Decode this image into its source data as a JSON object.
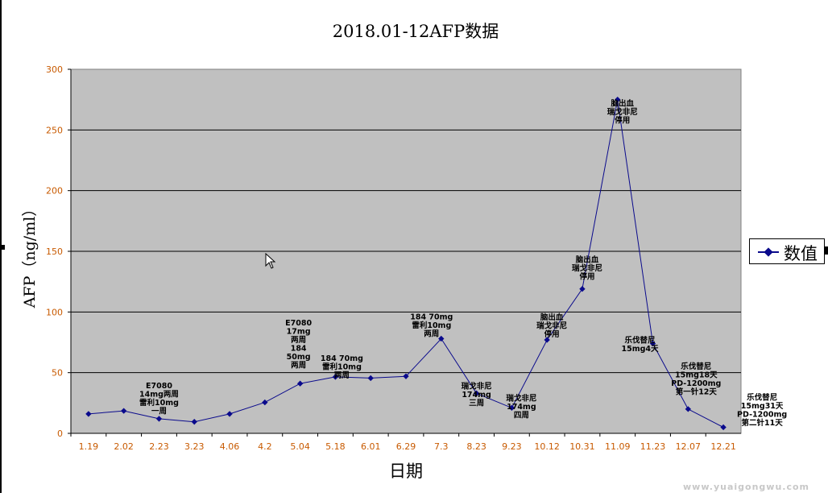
{
  "chart_data": {
    "type": "line",
    "title": "2018.01-12AFP数据",
    "xlabel": "日期",
    "ylabel": "AFP（ng/ml）",
    "ylim": [
      0,
      300
    ],
    "yticks": [
      0,
      50,
      100,
      150,
      200,
      250,
      300
    ],
    "grid": true,
    "legend_position": "right",
    "categories": [
      "1.19",
      "2.02",
      "2.23",
      "3.23",
      "4.06",
      "4.2",
      "5.04",
      "5.18",
      "6.01",
      "6.29",
      "7.3",
      "8.23",
      "9.23",
      "10.12",
      "10.31",
      "11.09",
      "11.23",
      "12.07",
      "12.21"
    ],
    "series": [
      {
        "name": "数值",
        "color": "#0a0a8c",
        "values": [
          16,
          18.5,
          12,
          9.5,
          16,
          25.5,
          41,
          46.5,
          45.5,
          47,
          78,
          33,
          21,
          77,
          119,
          275,
          74,
          20,
          5
        ]
      }
    ],
    "annotations": [
      {
        "category": "2.23",
        "lines": [
          "E7080",
          "14mg两周",
          "雷利10mg",
          "一周"
        ]
      },
      {
        "category": "5.04",
        "lines": [
          "E7080",
          "17mg",
          "两周",
          "184",
          "50mg",
          "两周"
        ]
      },
      {
        "category": "5.18",
        "lines": [
          "184 70mg",
          "雷利10mg",
          "两周"
        ]
      },
      {
        "category": "7.3",
        "lines": [
          "184 70mg",
          "雷利10mg",
          "两周"
        ]
      },
      {
        "category": "8.23",
        "lines": [
          "瑞戈非尼",
          "174mg",
          "三周"
        ]
      },
      {
        "category": "9.23",
        "lines": [
          "瑞戈非尼",
          "174mg",
          "四周"
        ]
      },
      {
        "category": "10.12",
        "lines": [
          "脑出血",
          "瑞戈非尼",
          "停用"
        ]
      },
      {
        "category": "10.31",
        "lines": [
          "脑出血",
          "瑞戈非尼",
          "停用"
        ]
      },
      {
        "category": "11.09",
        "lines": [
          "脑出血",
          "瑞戈非尼",
          "停用"
        ]
      },
      {
        "category": "11.23",
        "lines": [
          "乐伐替尼",
          "15mg4天"
        ]
      },
      {
        "category": "12.07",
        "lines": [
          "乐伐替尼",
          "15mg18天",
          "PD-1200mg",
          "第一针12天"
        ]
      },
      {
        "category": "12.21",
        "lines": [
          "乐伐替尼",
          "15mg31天",
          "PD-1200mg",
          "第二针11天"
        ]
      }
    ],
    "colors": {
      "plot_bg": "#c0c0c0",
      "axis_tick_label": "#c85a00",
      "line": "#0a0a8c"
    }
  },
  "legend": {
    "label": "数值"
  },
  "watermark": {
    "text": "www.yuaigongwu.com"
  }
}
